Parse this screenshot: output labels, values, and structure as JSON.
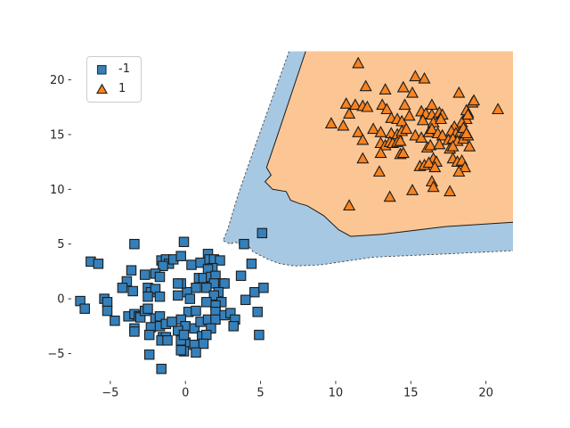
{
  "figure": {
    "background": "#ffffff",
    "title": ""
  },
  "legend": {
    "position": "upper left",
    "items": [
      {
        "label": "-1",
        "marker": "square",
        "marker_color": "#3580ba",
        "edge_color": "#17364f"
      },
      {
        "label": "1",
        "marker": "triangle",
        "marker_color": "#fa8320",
        "edge_color": "#1b1b1b"
      }
    ]
  },
  "chart_data": {
    "type": "scatter",
    "title": "",
    "xlabel": "",
    "ylabel": "",
    "grid": false,
    "spines_visible": false,
    "xlim": [
      -7.6,
      21.8
    ],
    "ylim": [
      -7.5,
      22.6
    ],
    "xticks": [
      -5,
      0,
      5,
      10,
      15,
      20
    ],
    "yticks": [
      -5,
      0,
      5,
      10,
      15,
      20
    ],
    "legend_position": "upper left",
    "regions": [
      {
        "name": "decision-region-class-neg1",
        "class": "-1",
        "fill": "#a7c8e2",
        "boundary_style": "dashed",
        "boundary_color": "#4a4a4a",
        "vertices": [
          [
            6.9,
            22.6
          ],
          [
            4.7,
            14.2
          ],
          [
            3.5,
            9.5
          ],
          [
            2.8,
            6.3
          ],
          [
            2.5,
            5.3
          ],
          [
            3.0,
            5.0
          ],
          [
            3.3,
            5.2
          ],
          [
            3.8,
            4.8
          ],
          [
            4.1,
            5.0
          ],
          [
            4.5,
            4.3
          ],
          [
            5.5,
            3.6
          ],
          [
            6.3,
            3.2
          ],
          [
            7.3,
            3.0
          ],
          [
            9.0,
            3.1
          ],
          [
            12.5,
            3.8
          ],
          [
            17.3,
            4.1
          ],
          [
            21.8,
            4.4
          ]
        ],
        "close_via": [
          [
            21.8,
            22.6
          ]
        ]
      },
      {
        "name": "decision-region-class-pos1",
        "class": "1",
        "fill": "#fbc694",
        "boundary_style": "solid",
        "boundary_color": "#1b1b1b",
        "vertices": [
          [
            8.0,
            22.6
          ],
          [
            6.0,
            14.4
          ],
          [
            5.4,
            12.0
          ],
          [
            5.7,
            11.3
          ],
          [
            5.3,
            10.7
          ],
          [
            5.8,
            10.0
          ],
          [
            6.7,
            9.8
          ],
          [
            7.0,
            9.0
          ],
          [
            7.6,
            8.7
          ],
          [
            8.1,
            8.5
          ],
          [
            9.2,
            7.6
          ],
          [
            10.2,
            6.3
          ],
          [
            11.0,
            5.7
          ],
          [
            13.1,
            5.9
          ],
          [
            17.3,
            6.6
          ],
          [
            21.8,
            7.0
          ]
        ],
        "close_via": [
          [
            21.8,
            22.6
          ]
        ]
      }
    ],
    "series": [
      {
        "name": "-1",
        "marker": "square",
        "marker_color": "#3580ba",
        "edge_color": "#1b1b1b",
        "points": [
          [
            -3.4,
            5.0
          ],
          [
            -6.3,
            3.4
          ],
          [
            -5.8,
            3.2
          ],
          [
            -3.6,
            2.6
          ],
          [
            -1.6,
            3.5
          ],
          [
            -1.3,
            3.6
          ],
          [
            -1.1,
            3.2
          ],
          [
            -1.5,
            3.0
          ],
          [
            -0.8,
            3.6
          ],
          [
            -2.7,
            2.2
          ],
          [
            -2.0,
            2.3
          ],
          [
            -1.7,
            2.0
          ],
          [
            -3.9,
            1.6
          ],
          [
            -4.2,
            1.0
          ],
          [
            -3.5,
            0.7
          ],
          [
            -2.5,
            1.0
          ],
          [
            -2.3,
            0.6
          ],
          [
            -2.0,
            0.9
          ],
          [
            -1.7,
            0.2
          ],
          [
            -2.5,
            0.2
          ],
          [
            -5.4,
            0.0
          ],
          [
            -7.0,
            -0.2
          ],
          [
            -5.2,
            -0.3
          ],
          [
            -0.1,
            5.2
          ],
          [
            5.1,
            6.0
          ],
          [
            3.9,
            5.0
          ],
          [
            4.4,
            3.2
          ],
          [
            -0.3,
            3.9
          ],
          [
            1.5,
            4.1
          ],
          [
            0.4,
            3.1
          ],
          [
            1.0,
            3.3
          ],
          [
            1.6,
            3.6
          ],
          [
            1.9,
            3.6
          ],
          [
            2.3,
            3.5
          ],
          [
            1.8,
            2.8
          ],
          [
            1.5,
            2.7
          ],
          [
            0.9,
            1.9
          ],
          [
            1.2,
            1.9
          ],
          [
            1.7,
            2.0
          ],
          [
            2.0,
            2.1
          ],
          [
            2.4,
            1.4
          ],
          [
            2.6,
            1.4
          ],
          [
            1.9,
            1.4
          ],
          [
            1.4,
            1.0
          ],
          [
            0.7,
            1.0
          ],
          [
            0.1,
            0.6
          ],
          [
            -0.3,
            1.4
          ],
          [
            -0.5,
            1.4
          ],
          [
            2.2,
            0.6
          ],
          [
            1.9,
            0.3
          ],
          [
            2.4,
            -0.3
          ],
          [
            3.7,
            2.1
          ],
          [
            4.6,
            0.6
          ],
          [
            5.2,
            1.0
          ],
          [
            4.0,
            -0.1
          ],
          [
            2.0,
            -0.6
          ],
          [
            1.4,
            -0.3
          ],
          [
            0.3,
            0.0
          ],
          [
            -0.5,
            0.3
          ],
          [
            -6.7,
            -0.9
          ],
          [
            -5.2,
            -1.1
          ],
          [
            -4.7,
            -2.0
          ],
          [
            -3.8,
            -1.6
          ],
          [
            -3.4,
            -1.4
          ],
          [
            -3.1,
            -1.6
          ],
          [
            -3.0,
            -1.7
          ],
          [
            -2.7,
            -1.1
          ],
          [
            -2.5,
            -0.9
          ],
          [
            -2.0,
            -1.8
          ],
          [
            -1.7,
            -1.6
          ],
          [
            -3.4,
            -2.7
          ],
          [
            -2.3,
            -2.6
          ],
          [
            -1.7,
            -2.5
          ],
          [
            -1.3,
            -2.3
          ],
          [
            -1.5,
            -3.5
          ],
          [
            -1.3,
            -3.5
          ],
          [
            -2.4,
            -5.1
          ],
          [
            -1.6,
            -6.4
          ],
          [
            0.2,
            -1.2
          ],
          [
            0.7,
            -1.1
          ],
          [
            -0.3,
            -1.9
          ],
          [
            0.0,
            -2.5
          ],
          [
            -0.5,
            -2.9
          ],
          [
            0.6,
            -2.7
          ],
          [
            1.0,
            -2.1
          ],
          [
            1.5,
            -1.9
          ],
          [
            2.0,
            -1.2
          ],
          [
            2.0,
            -1.9
          ],
          [
            2.6,
            -1.5
          ],
          [
            3.0,
            -1.3
          ],
          [
            3.3,
            -1.9
          ],
          [
            3.2,
            -2.5
          ],
          [
            1.7,
            -2.7
          ],
          [
            1.1,
            -3.4
          ],
          [
            1.4,
            -3.3
          ],
          [
            0.0,
            -4.0
          ],
          [
            0.6,
            -4.2
          ],
          [
            1.2,
            -4.1
          ],
          [
            -0.1,
            -4.8
          ],
          [
            0.7,
            -4.9
          ],
          [
            4.8,
            -1.2
          ],
          [
            4.9,
            -3.3
          ],
          [
            -3.4,
            -3.0
          ],
          [
            -2.4,
            -3.3
          ],
          [
            -0.9,
            -2.1
          ],
          [
            -1.6,
            -3.8
          ],
          [
            -1.2,
            -3.8
          ],
          [
            -0.3,
            -3.8
          ],
          [
            -0.1,
            -3.3
          ],
          [
            -0.3,
            -4.7
          ]
        ]
      },
      {
        "name": "1",
        "marker": "triangle",
        "marker_color": "#fa8320",
        "edge_color": "#1b1b1b",
        "points": [
          [
            11.5,
            21.5
          ],
          [
            12.0,
            19.4
          ],
          [
            13.3,
            19.1
          ],
          [
            14.5,
            19.3
          ],
          [
            10.7,
            17.8
          ],
          [
            11.3,
            17.7
          ],
          [
            11.8,
            17.6
          ],
          [
            12.1,
            17.5
          ],
          [
            10.9,
            16.9
          ],
          [
            13.1,
            17.7
          ],
          [
            13.4,
            17.3
          ],
          [
            13.7,
            16.5
          ],
          [
            14.1,
            16.4
          ],
          [
            14.4,
            16.2
          ],
          [
            9.7,
            16.0
          ],
          [
            10.5,
            15.8
          ],
          [
            14.6,
            17.7
          ],
          [
            14.9,
            16.7
          ],
          [
            15.3,
            20.3
          ],
          [
            15.9,
            20.1
          ],
          [
            15.1,
            18.8
          ],
          [
            16.4,
            17.7
          ],
          [
            18.2,
            18.8
          ],
          [
            19.1,
            17.9
          ],
          [
            20.8,
            17.3
          ],
          [
            15.7,
            17.1
          ],
          [
            16.0,
            16.9
          ],
          [
            16.4,
            16.8
          ],
          [
            16.9,
            17.0
          ],
          [
            17.1,
            16.8
          ],
          [
            15.8,
            16.3
          ],
          [
            16.5,
            16.1
          ],
          [
            17.0,
            16.4
          ],
          [
            18.8,
            17.0
          ],
          [
            18.7,
            16.4
          ],
          [
            18.4,
            16.1
          ],
          [
            17.9,
            15.7
          ],
          [
            11.5,
            15.2
          ],
          [
            11.8,
            14.5
          ],
          [
            12.5,
            15.5
          ],
          [
            13.0,
            15.2
          ],
          [
            13.7,
            15.1
          ],
          [
            14.1,
            15.0
          ],
          [
            14.4,
            15.3
          ],
          [
            13.0,
            14.2
          ],
          [
            13.3,
            14.0
          ],
          [
            13.6,
            14.3
          ],
          [
            13.8,
            14.2
          ],
          [
            14.1,
            14.3
          ],
          [
            14.3,
            14.4
          ],
          [
            13.0,
            13.3
          ],
          [
            14.3,
            13.2
          ],
          [
            11.8,
            12.8
          ],
          [
            12.9,
            11.6
          ],
          [
            13.6,
            9.3
          ],
          [
            10.9,
            8.5
          ],
          [
            14.5,
            13.3
          ],
          [
            14.7,
            15.5
          ],
          [
            15.3,
            14.9
          ],
          [
            15.7,
            14.7
          ],
          [
            16.2,
            15.2
          ],
          [
            16.4,
            15.5
          ],
          [
            16.8,
            15.1
          ],
          [
            17.1,
            14.9
          ],
          [
            17.7,
            15.3
          ],
          [
            18.0,
            15.1
          ],
          [
            18.3,
            15.2
          ],
          [
            18.6,
            15.2
          ],
          [
            17.5,
            14.5
          ],
          [
            17.8,
            14.6
          ],
          [
            18.1,
            14.4
          ],
          [
            18.5,
            14.6
          ],
          [
            16.1,
            13.8
          ],
          [
            16.3,
            14.0
          ],
          [
            16.9,
            14.1
          ],
          [
            17.6,
            13.7
          ],
          [
            17.8,
            13.9
          ],
          [
            18.9,
            13.9
          ],
          [
            16.5,
            12.8
          ],
          [
            16.7,
            12.5
          ],
          [
            15.6,
            12.1
          ],
          [
            15.9,
            12.2
          ],
          [
            16.2,
            12.4
          ],
          [
            16.6,
            12.0
          ],
          [
            17.8,
            12.8
          ],
          [
            18.1,
            12.5
          ],
          [
            18.4,
            12.6
          ],
          [
            18.6,
            12.0
          ],
          [
            18.2,
            11.6
          ],
          [
            15.1,
            9.9
          ],
          [
            16.4,
            10.7
          ],
          [
            16.5,
            10.2
          ],
          [
            17.6,
            9.8
          ],
          [
            19.2,
            18.1
          ],
          [
            18.7,
            17.2
          ],
          [
            18.8,
            16.8
          ],
          [
            18.5,
            15.6
          ],
          [
            18.8,
            14.9
          ],
          [
            18.7,
            15.1
          ]
        ]
      }
    ]
  }
}
